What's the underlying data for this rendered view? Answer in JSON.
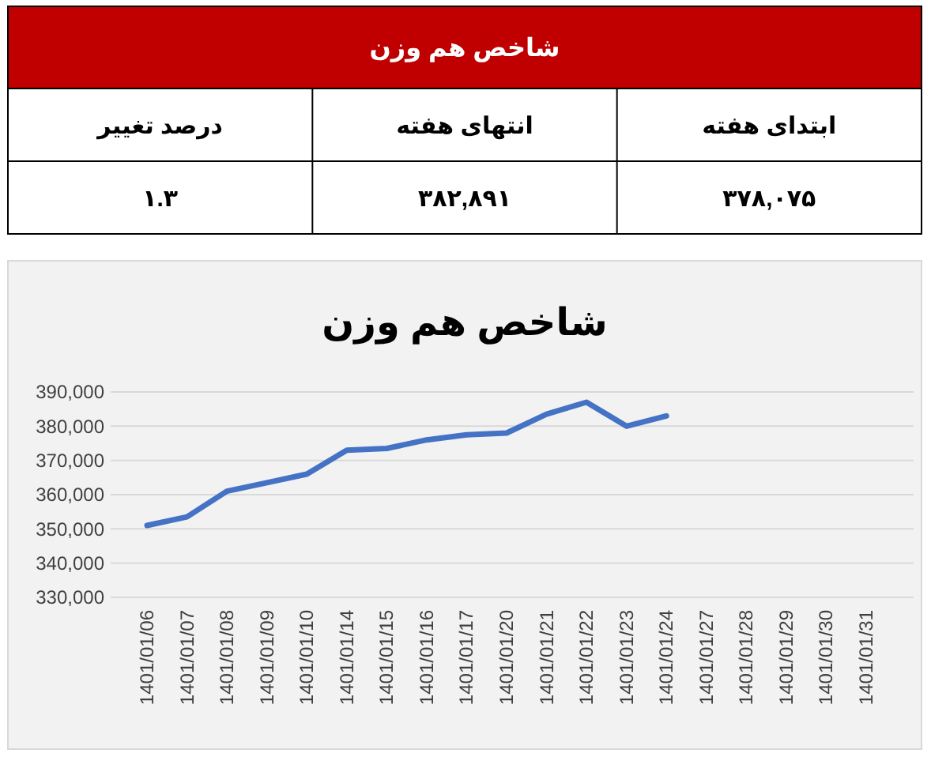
{
  "chart_data": [
    {
      "type": "other",
      "title": "شاخص هم وزن",
      "annotations": [
        "ابتدای هفته",
        "انتهای هفته",
        "درصد تغییر",
        "۳۷۸,۰۷۵",
        "۳۸۲,۸۹۱",
        "۱.۳"
      ]
    },
    {
      "type": "line",
      "title": "شاخص هم وزن",
      "categories": [
        "1401/01/06",
        "1401/01/07",
        "1401/01/08",
        "1401/01/09",
        "1401/01/10",
        "1401/01/14",
        "1401/01/15",
        "1401/01/16",
        "1401/01/17",
        "1401/01/20",
        "1401/01/21",
        "1401/01/22",
        "1401/01/23",
        "1401/01/24",
        "1401/01/27",
        "1401/01/28",
        "1401/01/29",
        "1401/01/30",
        "1401/01/31"
      ],
      "series": [
        {
          "color": "#4472c4",
          "values": [
            351000,
            353500,
            361000,
            363500,
            366000,
            373000,
            373500,
            376000,
            377500,
            378000,
            383500,
            387000,
            380000,
            383000,
            null,
            null,
            null,
            null,
            null
          ]
        }
      ],
      "ylim": [
        330000,
        390000
      ],
      "yticks": [
        {
          "value": 330000,
          "label": "330,000"
        },
        {
          "value": 340000,
          "label": "340,000"
        },
        {
          "value": 350000,
          "label": "350,000"
        },
        {
          "value": 360000,
          "label": "360,000"
        },
        {
          "value": 370000,
          "label": "370,000"
        },
        {
          "value": 380000,
          "label": "380,000"
        },
        {
          "value": 390000,
          "label": "390,000"
        }
      ],
      "grid": "y",
      "marker": "none",
      "line_style": "solid"
    }
  ]
}
